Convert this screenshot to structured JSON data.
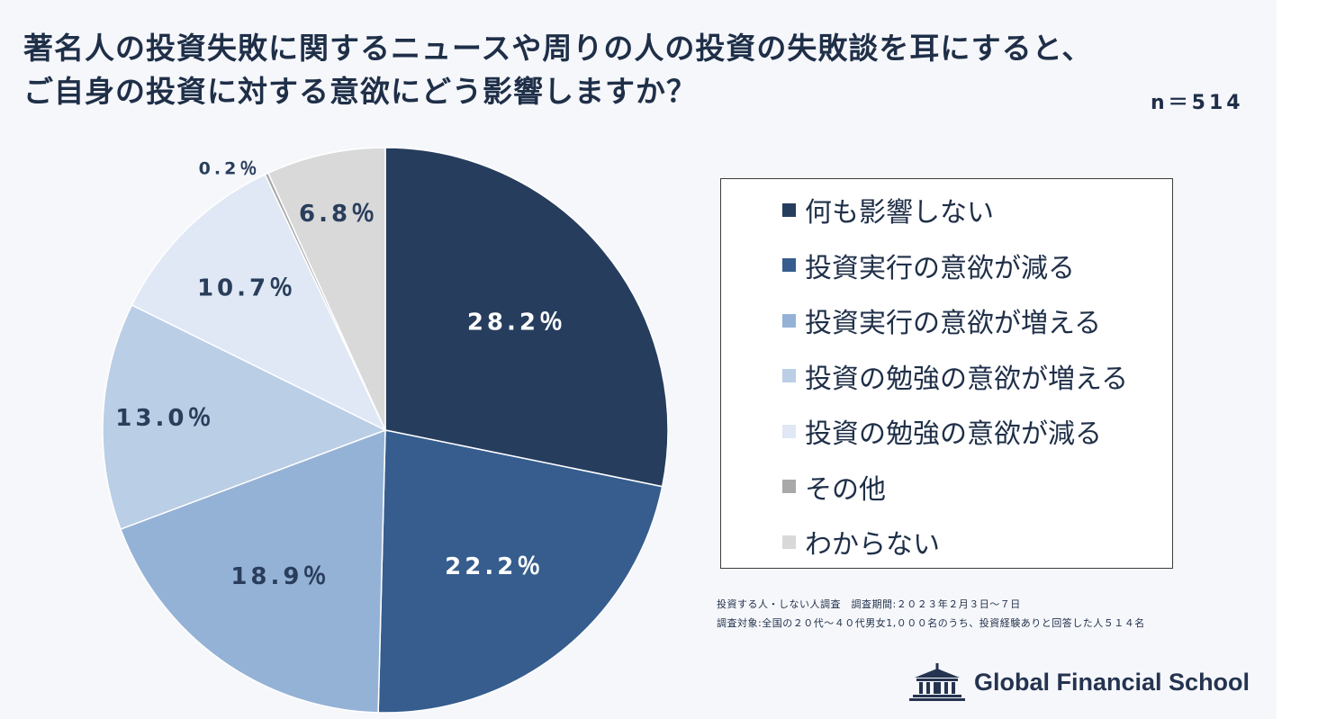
{
  "title": {
    "line1": "著名人の投資失敗に関するニュースや周りの人の投資の失敗談を耳にすると、",
    "line2": "ご自身の投資に対する意欲にどう影響しますか？"
  },
  "sample_size": "n＝514",
  "source": {
    "line1": "投資する人・しない人調査　調査期間:２０２３年２月３日～７日",
    "line2": "調査対象:全国の２０代～４０代男女1,０００名のうち、投資経験ありと回答した人５１４名"
  },
  "logo_text": "Global Financial School",
  "chart_data": {
    "type": "pie",
    "title": "著名人の投資失敗に関するニュースや周りの人の投資の失敗談を耳にすると、ご自身の投資に対する意欲にどう影響しますか？",
    "start_angle": "12 o'clock",
    "direction": "clockwise",
    "slices": [
      {
        "label": "何も影響しない",
        "value": 28.2,
        "display": "28.2％",
        "color": "#263d5e",
        "label_color": "#ffffff"
      },
      {
        "label": "投資実行の意欲が減る",
        "value": 22.2,
        "display": "22.2％",
        "color": "#365d8e",
        "label_color": "#ffffff"
      },
      {
        "label": "投資実行の意欲が増える",
        "value": 18.9,
        "display": "18.9％",
        "color": "#94b2d6",
        "label_color": "#2a3e5c"
      },
      {
        "label": "投資の勉強の意欲が増える",
        "value": 13.0,
        "display": "13.0％",
        "color": "#bacee6",
        "label_color": "#2a3e5c"
      },
      {
        "label": "投資の勉強の意欲が減る",
        "value": 10.7,
        "display": "10.7％",
        "color": "#dfe8f4",
        "label_color": "#2a3e5c"
      },
      {
        "label": "その他",
        "value": 0.2,
        "display": "0.2％",
        "color": "#a9a9a9",
        "label_color": "#2a3e5c"
      },
      {
        "label": "わからない",
        "value": 6.8,
        "display": "6.8％",
        "color": "#d9d9d9",
        "label_color": "#2a3e5c"
      }
    ],
    "legend": [
      "何も影響しない",
      "投資実行の意欲が減る",
      "投資実行の意欲が増える",
      "投資の勉強の意欲が増える",
      "投資の勉強の意欲が減る",
      "その他",
      "わからない"
    ],
    "legend_position": "right"
  }
}
